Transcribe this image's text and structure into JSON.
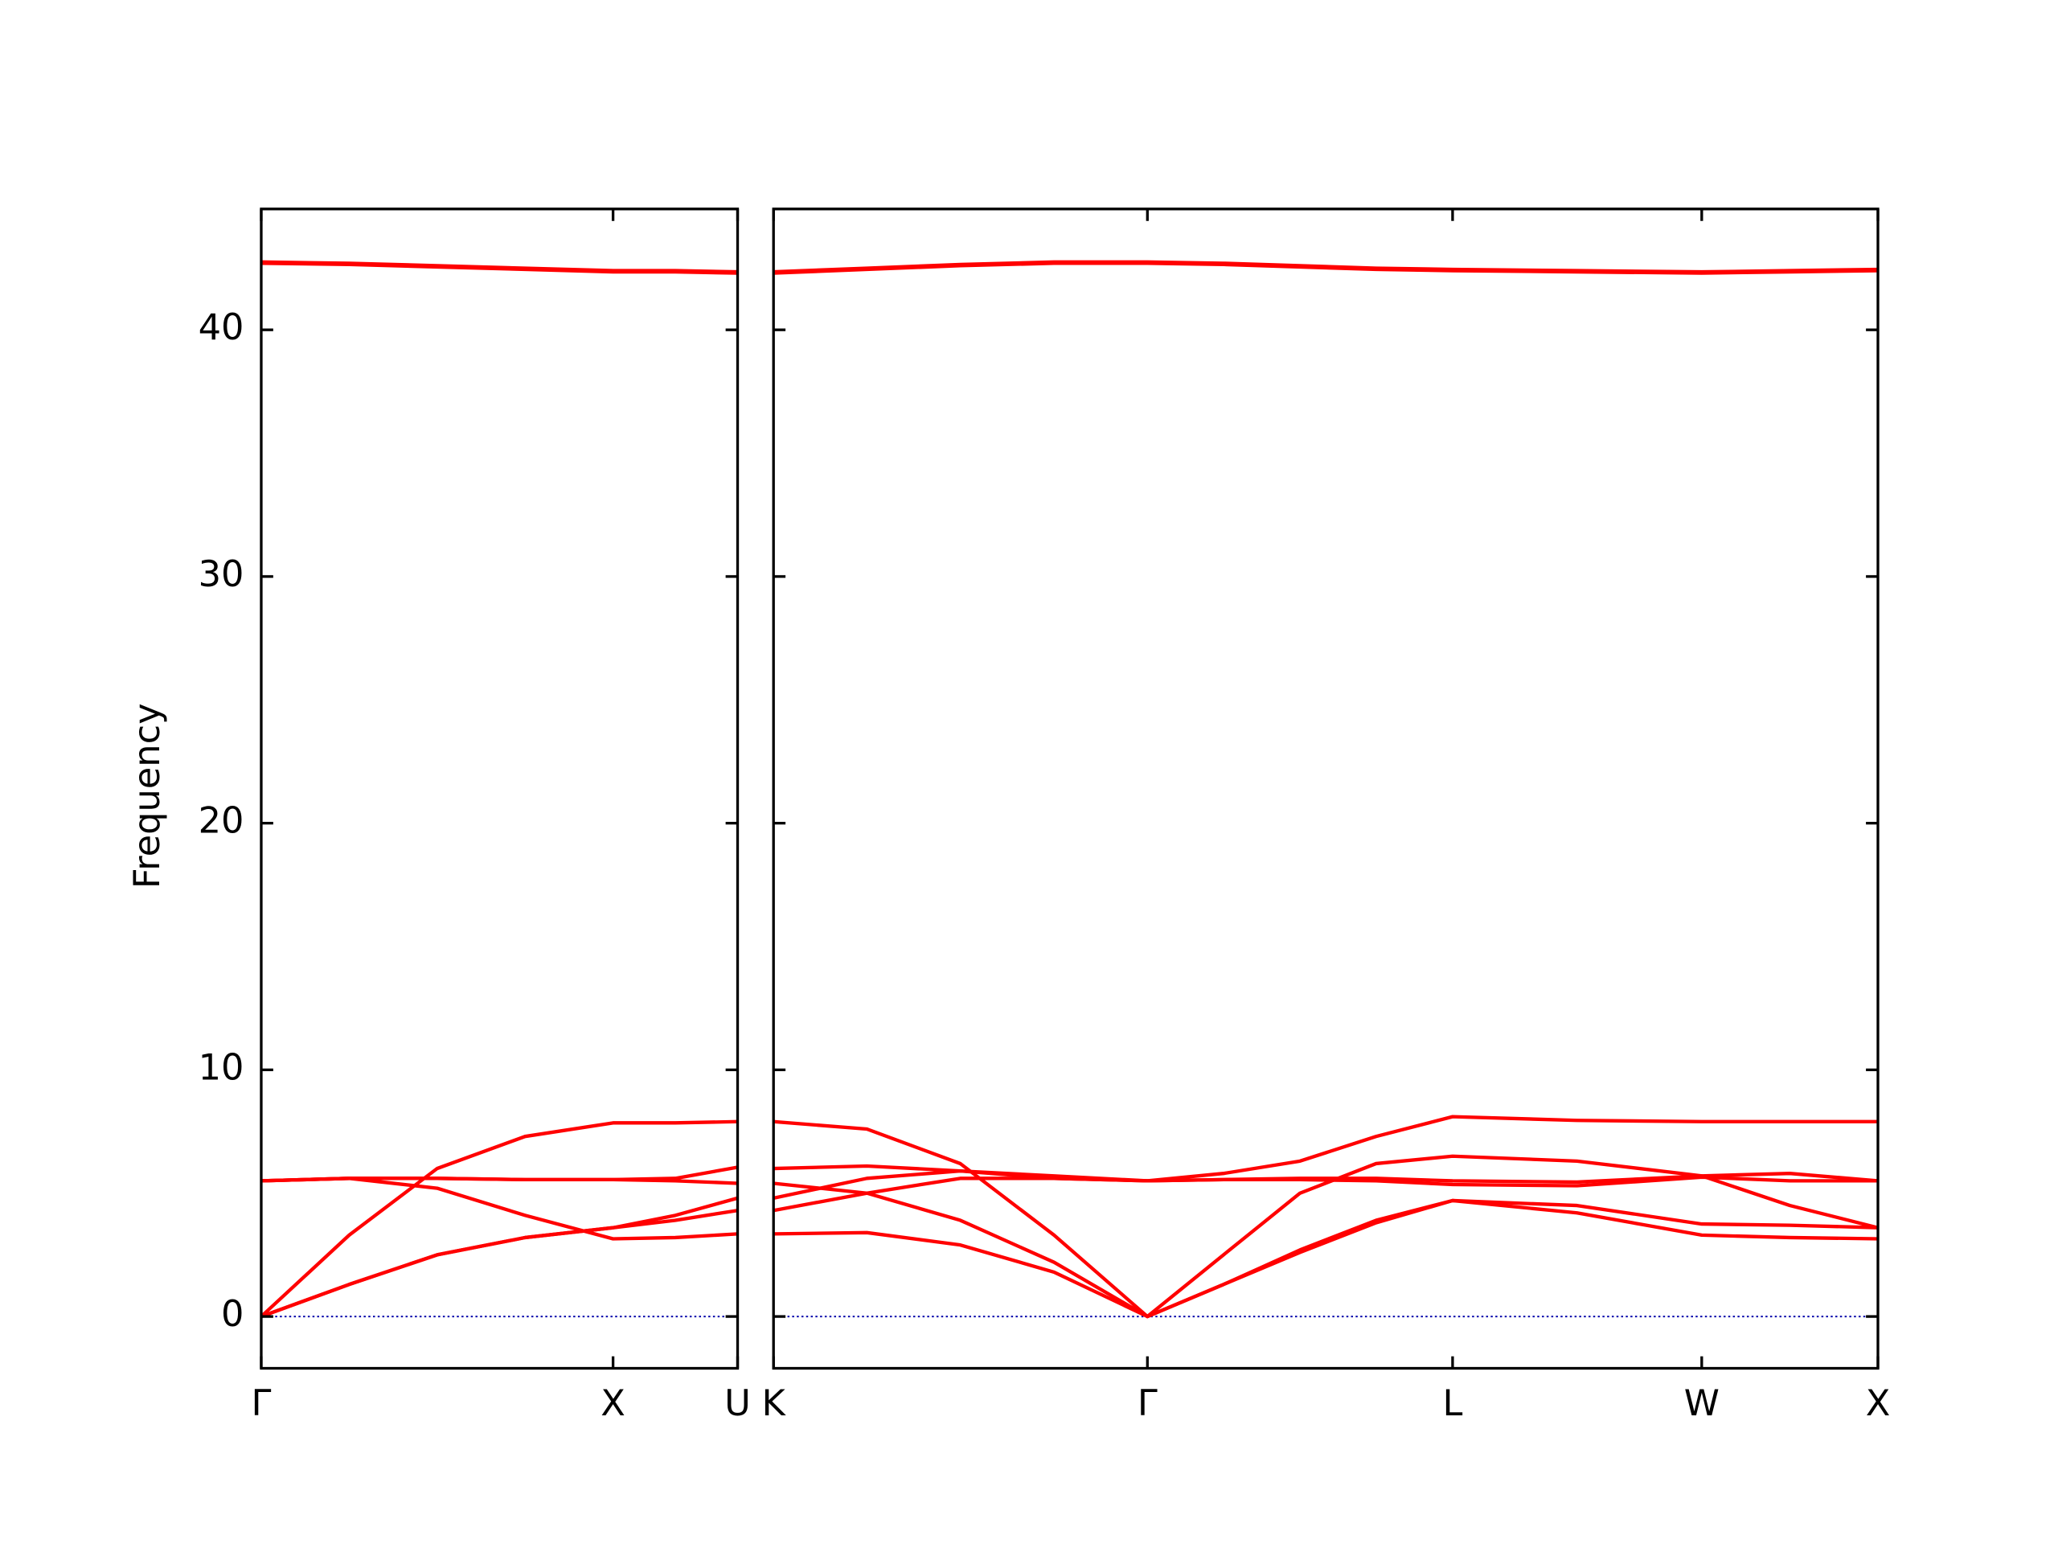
{
  "chart_data": [
    {
      "type": "line",
      "ylabel": "Frequency",
      "x": [
        0,
        0.25,
        0.5,
        0.75,
        1.0,
        1.177,
        1.354
      ],
      "xlim": [
        0,
        1.354
      ],
      "xticks": [
        {
          "value": 0,
          "label": "Γ"
        },
        {
          "value": 1.0,
          "label": "X"
        },
        {
          "value": 1.354,
          "label": "U"
        }
      ],
      "ylim": [
        -2.1,
        44.9
      ],
      "yticks": [
        0,
        10,
        20,
        30,
        40
      ],
      "hline": 0,
      "hline_color": "#0000aa",
      "series": [
        {
          "color": "#ff0000",
          "values": [
            0,
            1.3,
            2.5,
            3.2,
            3.6,
            3.9,
            4.3
          ]
        },
        {
          "color": "#ff0000",
          "values": [
            0,
            1.3,
            2.5,
            3.2,
            3.6,
            4.1,
            4.8
          ]
        },
        {
          "color": "#ff0000",
          "values": [
            0,
            3.3,
            6.0,
            7.3,
            7.85,
            7.85,
            7.9
          ]
        },
        {
          "color": "#ff0000",
          "values": [
            5.5,
            5.6,
            5.2,
            4.1,
            3.15,
            3.2,
            3.35
          ]
        },
        {
          "color": "#ff0000",
          "values": [
            5.5,
            5.6,
            5.6,
            5.55,
            5.55,
            5.6,
            6.05
          ]
        },
        {
          "color": "#ff0000",
          "values": [
            5.5,
            5.6,
            5.6,
            5.55,
            5.55,
            5.5,
            5.4
          ]
        },
        {
          "color": "#ff0000",
          "values": [
            42.7,
            42.65,
            42.55,
            42.45,
            42.35,
            42.35,
            42.3
          ]
        },
        {
          "color": "#ff0000",
          "values": [
            42.75,
            42.7,
            42.6,
            42.5,
            42.4,
            42.4,
            42.35
          ]
        }
      ]
    },
    {
      "type": "line",
      "x": [
        0,
        0.265,
        0.53,
        0.796,
        1.061,
        1.277,
        1.494,
        1.71,
        1.927,
        2.28,
        2.634,
        2.884,
        3.134
      ],
      "xlim": [
        0,
        3.134
      ],
      "xticks": [
        {
          "value": 0,
          "label": "K"
        },
        {
          "value": 1.061,
          "label": "Γ"
        },
        {
          "value": 1.927,
          "label": "L"
        },
        {
          "value": 2.634,
          "label": "W"
        },
        {
          "value": 3.134,
          "label": "X"
        }
      ],
      "ylim": [
        -2.1,
        44.9
      ],
      "hline": 0,
      "hline_color": "#0000aa",
      "series": [
        {
          "color": "#ff0000",
          "values": [
            3.35,
            3.4,
            2.9,
            1.8,
            0,
            1.3,
            2.6,
            3.8,
            4.7,
            4.2,
            3.3,
            3.2,
            3.15
          ]
        },
        {
          "color": "#ff0000",
          "values": [
            5.4,
            5.0,
            3.9,
            2.2,
            0,
            1.3,
            2.7,
            3.9,
            4.7,
            4.5,
            3.75,
            3.7,
            3.6
          ]
        },
        {
          "color": "#ff0000",
          "values": [
            7.9,
            7.6,
            6.2,
            3.3,
            0,
            2.5,
            5.0,
            6.2,
            6.5,
            6.3,
            5.7,
            4.5,
            3.6
          ]
        },
        {
          "color": "#ff0000",
          "values": [
            4.3,
            5.0,
            5.6,
            5.6,
            5.5,
            5.55,
            5.55,
            5.5,
            5.35,
            5.3,
            5.65,
            5.5,
            5.5
          ]
        },
        {
          "color": "#ff0000",
          "values": [
            4.8,
            5.6,
            5.9,
            5.7,
            5.5,
            5.55,
            5.6,
            5.6,
            5.5,
            5.45,
            5.7,
            5.8,
            5.5
          ]
        },
        {
          "color": "#ff0000",
          "values": [
            6.0,
            6.1,
            5.9,
            5.6,
            5.5,
            5.8,
            6.3,
            7.3,
            8.1,
            7.95,
            7.9,
            7.9,
            7.9
          ]
        },
        {
          "color": "#ff0000",
          "values": [
            42.3,
            42.45,
            42.6,
            42.7,
            42.7,
            42.65,
            42.55,
            42.45,
            42.4,
            42.35,
            42.3,
            42.35,
            42.4
          ]
        },
        {
          "color": "#ff0000",
          "values": [
            42.35,
            42.5,
            42.65,
            42.75,
            42.75,
            42.7,
            42.6,
            42.5,
            42.45,
            42.4,
            42.35,
            42.4,
            42.45
          ]
        }
      ]
    }
  ]
}
